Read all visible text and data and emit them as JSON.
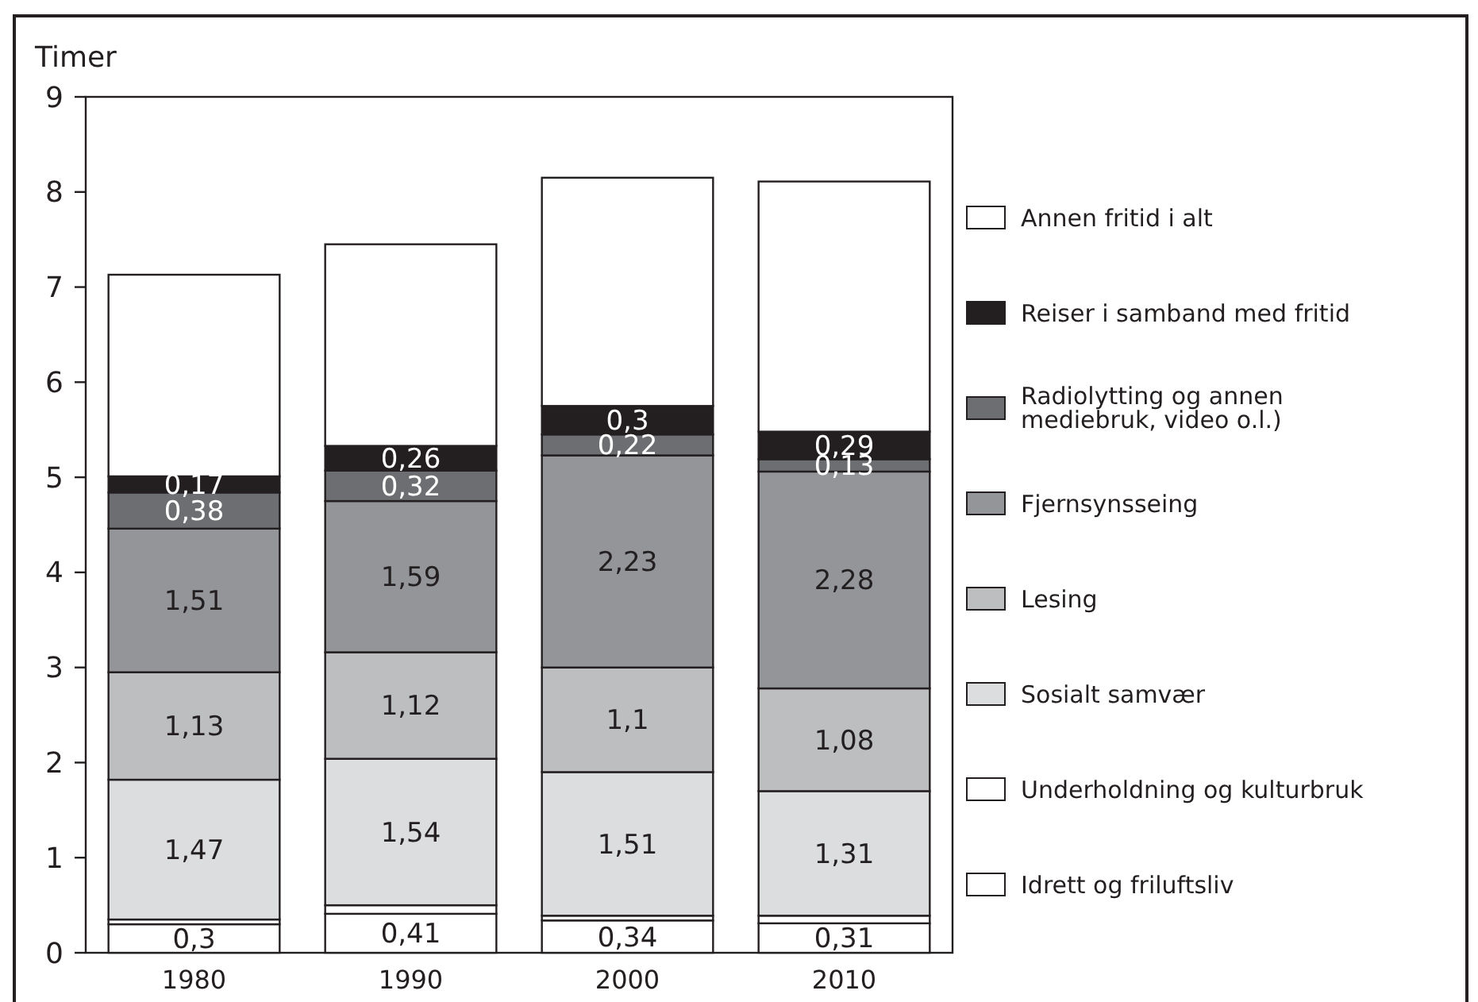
{
  "chart_data": {
    "type": "bar",
    "stacked": true,
    "ylabel": "Timer",
    "categories": [
      "1980",
      "1990",
      "2000",
      "2010"
    ],
    "ylim": [
      0,
      9
    ],
    "yticks": [
      0,
      1,
      2,
      3,
      4,
      5,
      6,
      7,
      8,
      9
    ],
    "grid": false,
    "legend": "right",
    "series": [
      {
        "name": "Idrett og friluftsliv",
        "color": "#ffffff",
        "values": [
          0.3,
          0.41,
          0.34,
          0.31
        ],
        "value_labels": [
          "0,3",
          "0,41",
          "0,34",
          "0,31"
        ]
      },
      {
        "name": "Underholdning og kulturbruk",
        "color": "#ffffff",
        "values": [
          0.05,
          0.09,
          0.05,
          0.08
        ]
      },
      {
        "name": "Sosialt samvær",
        "color": "#dcdddf",
        "values": [
          1.47,
          1.54,
          1.51,
          1.31
        ],
        "value_labels": [
          "1,47",
          "1,54",
          "1,51",
          "1,31"
        ]
      },
      {
        "name": "Lesing",
        "color": "#bcbec0",
        "values": [
          1.13,
          1.12,
          1.1,
          1.08
        ],
        "value_labels": [
          "1,13",
          "1,12",
          "1,1",
          "1,08"
        ]
      },
      {
        "name": "Fjernsynsseing",
        "color": "#939598",
        "values": [
          1.51,
          1.59,
          2.23,
          2.28
        ],
        "value_labels": [
          "1,51",
          "1,59",
          "2,23",
          "2,28"
        ]
      },
      {
        "name": "Radiolytting og annen mediebruk, video o.l.)",
        "color": "#6d6e71",
        "values": [
          0.38,
          0.32,
          0.22,
          0.13
        ],
        "value_labels": [
          "0,38",
          "0,32",
          "0,22",
          "0,13"
        ]
      },
      {
        "name": "Reiser i samband med fritid",
        "color": "#231f20",
        "values": [
          0.17,
          0.26,
          0.3,
          0.29
        ],
        "value_labels": [
          "0,17",
          "0,26",
          "0,3",
          "0,29"
        ]
      },
      {
        "name": "Annen fritid i alt",
        "color": "#ffffff",
        "values": [
          2.12,
          2.12,
          2.4,
          2.63
        ]
      }
    ]
  }
}
